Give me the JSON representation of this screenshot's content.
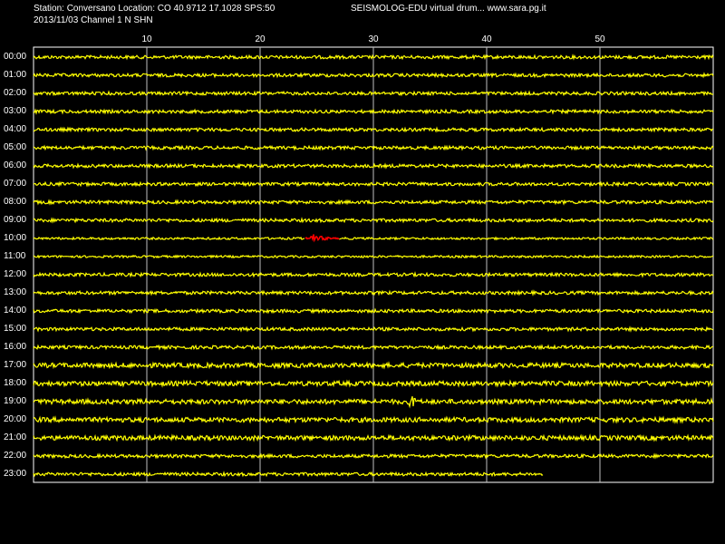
{
  "header": {
    "station_line": "Station: Conversano Location: CO 40.9712 17.1028 SPS:50",
    "date_line": "2013/11/03  Channel 1 N SHN",
    "app_line": "SEISMOLOG-EDU virtual drum... www.sara.pg.it"
  },
  "colors": {
    "background": "#000000",
    "trace": "#ffff00",
    "event": "#ff0000",
    "frame": "#ffffff",
    "grid": "#c0c0c0"
  },
  "chart_data": {
    "type": "line",
    "title": "",
    "xlabel": "",
    "ylabel": "",
    "x_ticks": [
      "10",
      "20",
      "30",
      "40",
      "50"
    ],
    "xlim": [
      0,
      60
    ],
    "hours": [
      "00:00",
      "01:00",
      "02:00",
      "03:00",
      "04:00",
      "05:00",
      "06:00",
      "07:00",
      "08:00",
      "09:00",
      "10:00",
      "11:00",
      "12:00",
      "13:00",
      "14:00",
      "15:00",
      "16:00",
      "17:00",
      "18:00",
      "19:00",
      "20:00",
      "21:00",
      "22:00",
      "23:00"
    ],
    "last_row_end_minute": 45,
    "event": {
      "hour": "10:00",
      "start_minute": 24,
      "end_minute": 27
    },
    "grid": true
  }
}
